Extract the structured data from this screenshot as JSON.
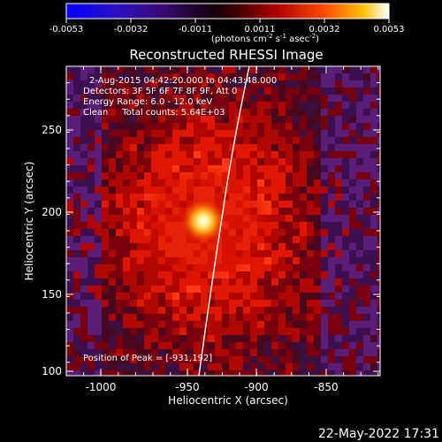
{
  "colorbar": {
    "ticks": [
      "-0.0053",
      "-0.0032",
      "-0.0011",
      "0.0011",
      "0.0032",
      "0.0053"
    ],
    "units_text": "(photons cm",
    "units_sup1": "-2",
    "units_mid": " s",
    "units_sup2": "-1",
    "units_end": " asec",
    "units_sup3": "-2",
    "units_close": ")",
    "colors": [
      "#0000ff",
      "#3a0aa0",
      "#3a0050",
      "#000000",
      "#8a0000",
      "#ff3000",
      "#ffb000",
      "#ffffff"
    ]
  },
  "plot": {
    "title": "Reconstructed RHESSI Image",
    "xlabel": "Heliocentric X (arcsec)",
    "ylabel": "Heliocentric Y (arcsec)",
    "xticks": [
      "-1000",
      "-950",
      "-900",
      "-850"
    ],
    "yticks": [
      "100",
      "150",
      "200",
      "250"
    ],
    "info_lines": [
      "2-Aug-2015 04:42:20.000 to 04:43:48.000",
      "Detectors: 3F 5F 6F 7F 8F 9F, Att 0",
      "Energy Range: 6.0 - 12.0 keV",
      "Clean     Total counts: 5.64E+03"
    ],
    "peak_text": "Position of Peak = [-931,192]",
    "footer_timestamp": "22-May-2022 17:31"
  }
}
